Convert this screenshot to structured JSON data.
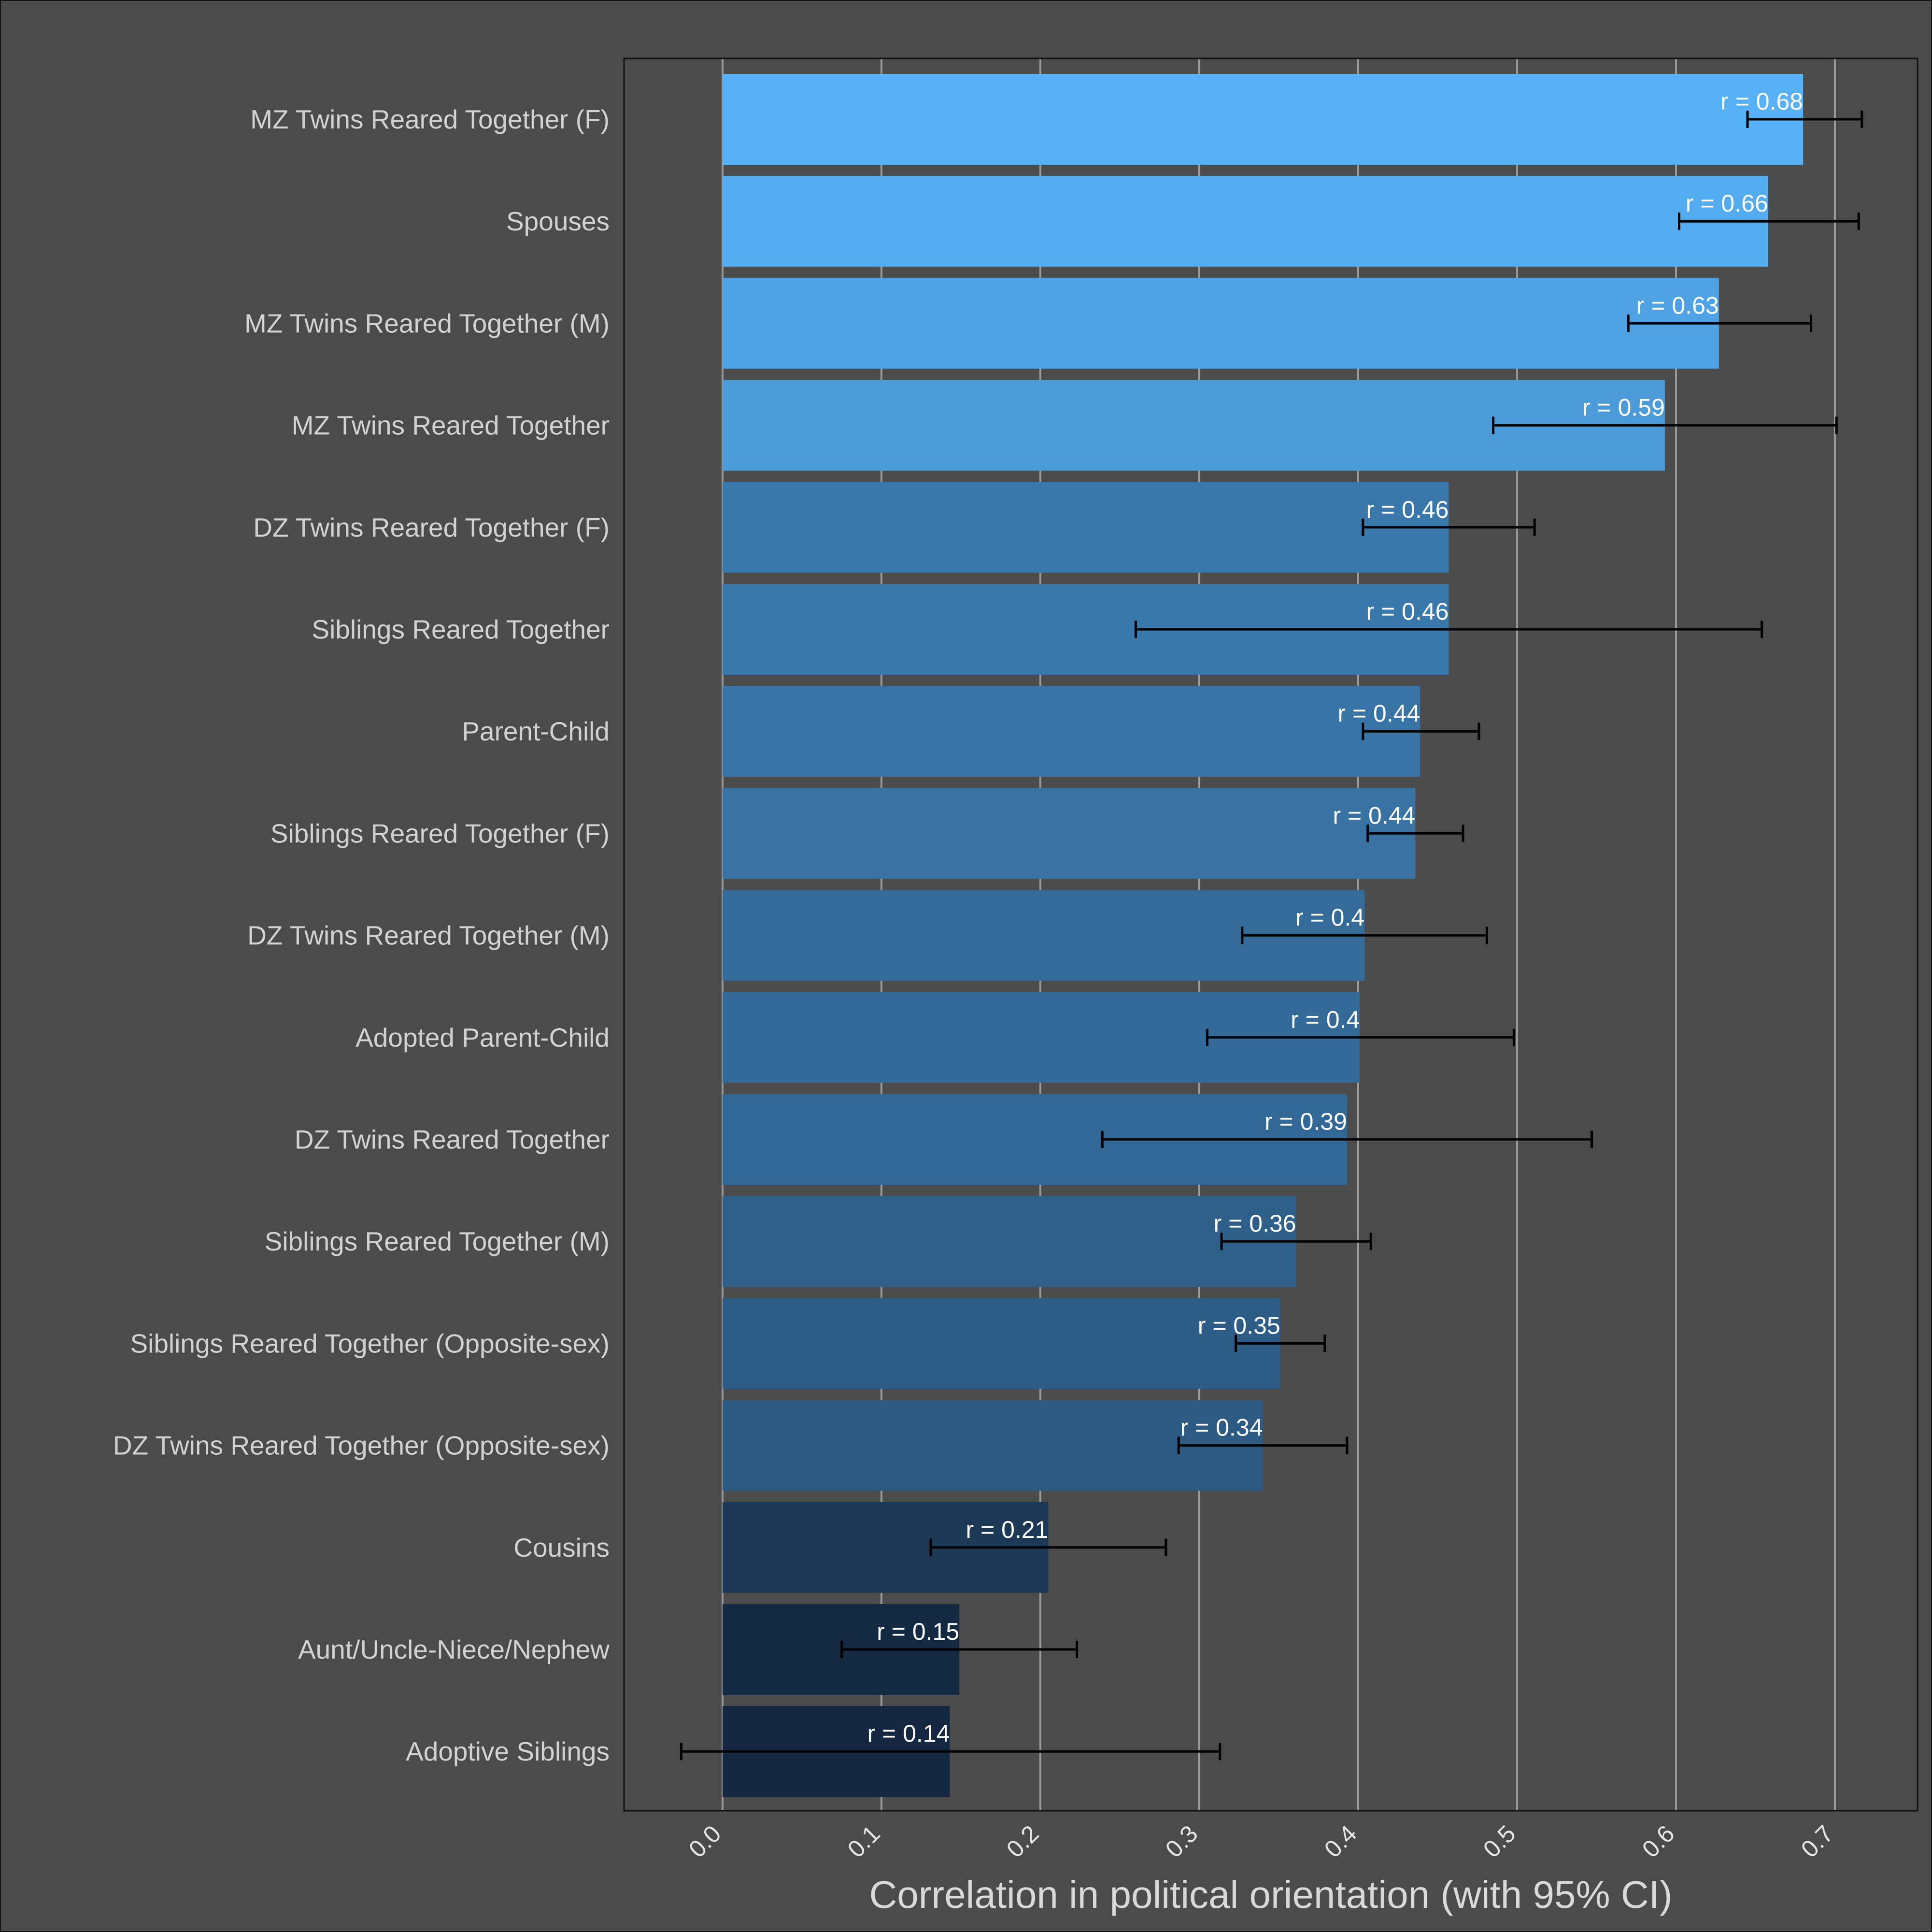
{
  "chart_data": {
    "type": "bar",
    "orientation": "horizontal",
    "xlabel": "Correlation in political orientation (with 95% CI)",
    "ylabel": "",
    "xlim": [
      -0.062,
      0.752
    ],
    "x_ticks": [
      {
        "value": 0.0,
        "label": "0.0"
      },
      {
        "value": 0.1,
        "label": "0.1"
      },
      {
        "value": 0.2,
        "label": "0.2"
      },
      {
        "value": 0.3,
        "label": "0.3"
      },
      {
        "value": 0.4,
        "label": "0.4"
      },
      {
        "value": 0.5,
        "label": "0.5"
      },
      {
        "value": 0.6,
        "label": "0.6"
      },
      {
        "value": 0.7,
        "label": "0.7"
      }
    ],
    "grid": "vertical major gridlines",
    "legend": "none",
    "colors": {
      "background": "#4b4b4b",
      "gridline": "#9a9a9a",
      "error_bar": "#000000",
      "bar_low": "#132840",
      "bar_high": "#56b1f7"
    },
    "bars": [
      {
        "category": "MZ Twins Reared Together (F)",
        "value": 0.68,
        "ci": [
          0.645,
          0.717
        ],
        "label": "r = 0.68"
      },
      {
        "category": "Spouses",
        "value": 0.658,
        "ci": [
          0.602,
          0.715
        ],
        "label": "r = 0.66"
      },
      {
        "category": "MZ Twins Reared Together (M)",
        "value": 0.627,
        "ci": [
          0.57,
          0.685
        ],
        "label": "r = 0.63"
      },
      {
        "category": "MZ Twins Reared Together",
        "value": 0.593,
        "ci": [
          0.485,
          0.701
        ],
        "label": "r = 0.59"
      },
      {
        "category": "DZ Twins Reared Together (F)",
        "value": 0.457,
        "ci": [
          0.403,
          0.511
        ],
        "label": "r = 0.46"
      },
      {
        "category": "Siblings Reared Together",
        "value": 0.457,
        "ci": [
          0.26,
          0.654
        ],
        "label": "r = 0.46"
      },
      {
        "category": "Parent-Child",
        "value": 0.439,
        "ci": [
          0.403,
          0.476
        ],
        "label": "r = 0.44"
      },
      {
        "category": "Siblings Reared Together (F)",
        "value": 0.436,
        "ci": [
          0.406,
          0.466
        ],
        "label": "r = 0.44"
      },
      {
        "category": "DZ Twins Reared Together (M)",
        "value": 0.404,
        "ci": [
          0.327,
          0.481
        ],
        "label": "r = 0.4"
      },
      {
        "category": "Adopted Parent-Child",
        "value": 0.401,
        "ci": [
          0.305,
          0.498
        ],
        "label": "r = 0.4"
      },
      {
        "category": "DZ Twins Reared Together",
        "value": 0.393,
        "ci": [
          0.239,
          0.547
        ],
        "label": "r = 0.39"
      },
      {
        "category": "Siblings Reared Together (M)",
        "value": 0.361,
        "ci": [
          0.314,
          0.408
        ],
        "label": "r = 0.36"
      },
      {
        "category": "Siblings Reared Together (Opposite-sex)",
        "value": 0.351,
        "ci": [
          0.323,
          0.379
        ],
        "label": "r = 0.35"
      },
      {
        "category": "DZ Twins Reared Together (Opposite-sex)",
        "value": 0.34,
        "ci": [
          0.287,
          0.393
        ],
        "label": "r = 0.34"
      },
      {
        "category": "Cousins",
        "value": 0.205,
        "ci": [
          0.131,
          0.279
        ],
        "label": "r = 0.21"
      },
      {
        "category": "Aunt/Uncle-Niece/Nephew",
        "value": 0.149,
        "ci": [
          0.075,
          0.223
        ],
        "label": "r = 0.15"
      },
      {
        "category": "Adoptive Siblings",
        "value": 0.143,
        "ci": [
          -0.026,
          0.313
        ],
        "label": "r = 0.14"
      }
    ]
  }
}
